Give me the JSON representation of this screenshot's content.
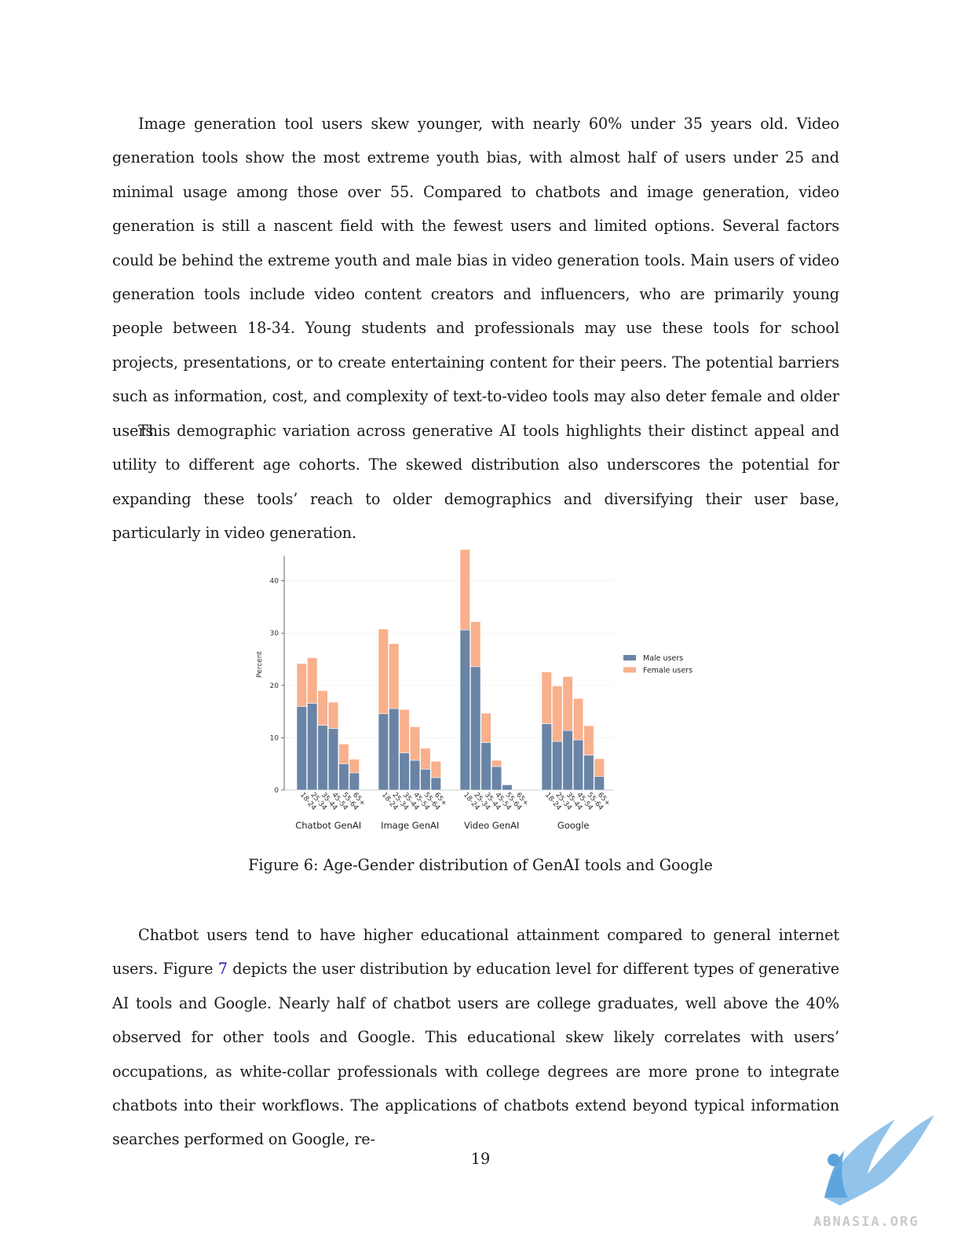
{
  "paragraphs": {
    "p1": "Image generation tool users skew younger, with nearly 60% under 35 years old. Video generation tools show the most extreme youth bias, with almost half of users under 25 and minimal usage among those over 55. Compared to chatbots and image generation, video generation is still a nascent field with the fewest users and limited options. Several factors could be behind the extreme youth and male bias in video generation tools. Main users of video generation tools include video content creators and influencers, who are primarily young people between 18-34. Young students and professionals may use these tools for school projects, presentations, or to create entertaining content for their peers. The potential barriers such as information, cost, and complexity of text-to-video tools may also deter female and older users.",
    "p2": "This demographic variation across generative AI tools highlights their distinct appeal and utility to different age cohorts. The skewed distribution also underscores the potential for expanding these tools’ reach to older demographics and diversifying their user base, particularly in video generation.",
    "p3_before": "Chatbot users tend to have higher educational attainment compared to general internet users. Figure ",
    "p3_ref": "7",
    "p3_after": " depicts the user distribution by education level for different types of generative AI tools and Google. Nearly half of chatbot users are college graduates, well above the 40% observed for other tools and Google. This educational skew likely correlates with users’ occupations, as white-collar professionals with college degrees are more prone to integrate chatbots into their workflows. The applications of chatbots extend beyond typical information searches performed on Google, re-"
  },
  "caption": "Figure 6: Age-Gender distribution of GenAI tools and Google",
  "page_number": "19",
  "watermark": {
    "text": "ABNASIA.ORG"
  },
  "chart_data": {
    "type": "bar",
    "stacked": true,
    "title": "",
    "ylabel": "Percent",
    "xlabel": "",
    "ylim": [
      0,
      46
    ],
    "yticks": [
      0,
      10,
      20,
      30,
      40
    ],
    "grid": true,
    "legend_position": "right",
    "age_groups": [
      "18-24",
      "25-34",
      "35-44",
      "45-54",
      "55-64",
      "65+"
    ],
    "groups": [
      "Chatbot GenAI",
      "Image GenAI",
      "Video GenAI",
      "Google"
    ],
    "series": [
      {
        "name": "Male users",
        "color": "#6a84a6",
        "values": [
          [
            16.0,
            16.6,
            12.4,
            11.8,
            5.0,
            3.3
          ],
          [
            14.6,
            15.6,
            7.1,
            5.7,
            4.0,
            2.4
          ],
          [
            30.6,
            23.6,
            9.1,
            4.5,
            1.0,
            0.0
          ],
          [
            12.7,
            9.3,
            11.4,
            9.6,
            6.7,
            2.6
          ]
        ]
      },
      {
        "name": "Female users",
        "color": "#f9b08c",
        "values": [
          [
            8.2,
            8.7,
            6.6,
            5.0,
            3.8,
            2.6
          ],
          [
            16.2,
            12.4,
            8.3,
            6.4,
            4.0,
            3.1
          ],
          [
            15.4,
            8.6,
            5.6,
            1.2,
            0.0,
            0.0
          ],
          [
            9.9,
            10.6,
            10.3,
            7.9,
            5.6,
            3.4
          ]
        ]
      }
    ]
  }
}
